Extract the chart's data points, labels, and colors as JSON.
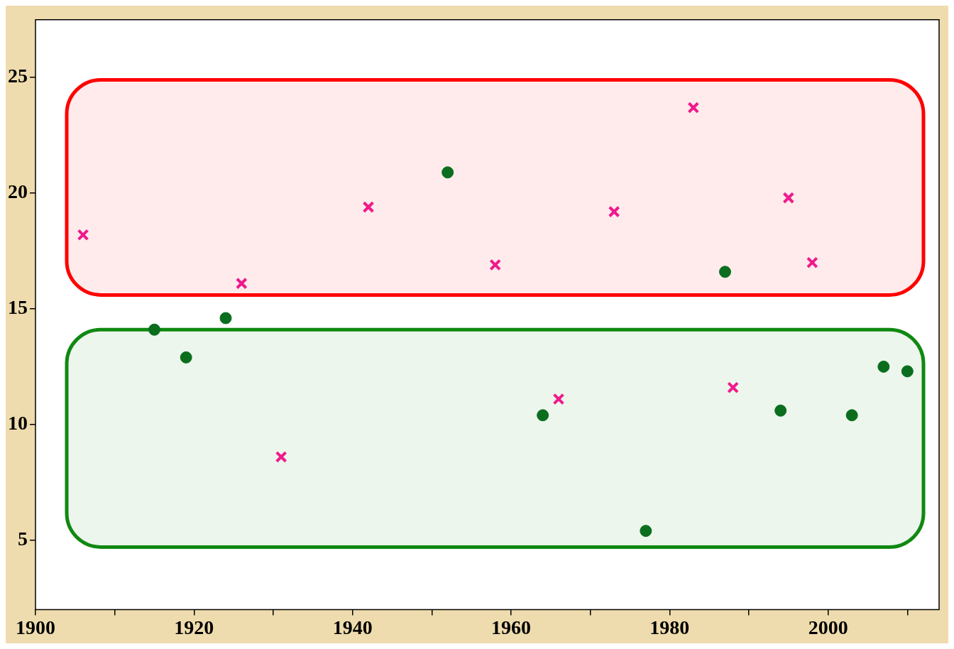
{
  "chart_data": {
    "type": "scatter",
    "xlim": [
      1900,
      2014
    ],
    "ylim": [
      2,
      27.5
    ],
    "xticks": [
      1900,
      {
        "value": 1910,
        "label": null
      },
      1920,
      {
        "value": 1930,
        "label": null
      },
      1940,
      {
        "value": 1950,
        "label": null
      },
      1960,
      {
        "value": 1970,
        "label": null
      },
      1980,
      {
        "value": 1990,
        "label": null
      },
      2000,
      {
        "value": 2010,
        "label": null
      }
    ],
    "yticks": [
      5,
      10,
      15,
      20,
      25
    ],
    "grid": false,
    "series": [
      {
        "color": "#f0198c",
        "marker": "cross",
        "x": [
          1906,
          1926,
          1931,
          1942,
          1958,
          1966,
          1973,
          1983,
          1988,
          1995,
          1998
        ],
        "values": [
          18.2,
          16.1,
          8.6,
          19.4,
          16.9,
          11.1,
          19.2,
          23.7,
          11.6,
          19.8,
          17.0
        ]
      },
      {
        "color": "#0a6e1e",
        "marker": "circle",
        "x": [
          1915,
          1919,
          1924,
          1952,
          1964,
          1977,
          1987,
          1994,
          2003,
          2007,
          2010
        ],
        "values": [
          14.1,
          12.9,
          14.6,
          20.9,
          10.4,
          5.4,
          16.6,
          10.6,
          10.4,
          12.5,
          12.3
        ]
      }
    ],
    "bands": [
      {
        "axis": "y",
        "from": 15.6,
        "to": 24.9,
        "color": "#ff0000"
      },
      {
        "axis": "y",
        "from": 4.7,
        "to": 14.1,
        "color": "#118811"
      }
    ]
  }
}
